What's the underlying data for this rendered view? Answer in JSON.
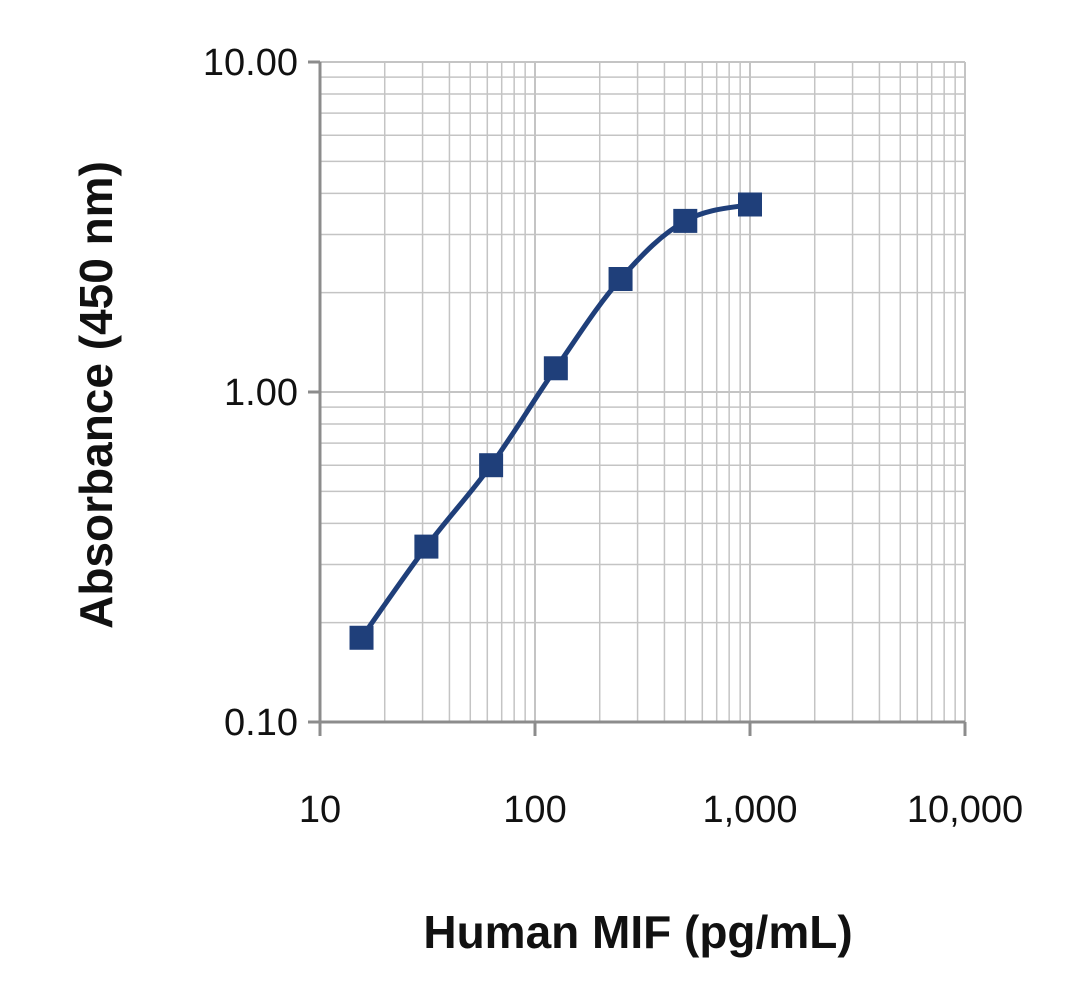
{
  "chart_data": {
    "type": "line",
    "title": "",
    "xlabel": "Human MIF (pg/mL)",
    "ylabel": "Absorbance (450 nm)",
    "x_scale": "log",
    "y_scale": "log",
    "xlim": [
      10,
      10000
    ],
    "ylim": [
      0.1,
      10
    ],
    "x_ticks": [
      10,
      100,
      1000,
      10000
    ],
    "x_tick_labels": [
      "10",
      "100",
      "1,000",
      "10,000"
    ],
    "y_ticks": [
      0.1,
      1,
      10
    ],
    "y_tick_labels": [
      "0.10",
      "1.00",
      "10.00"
    ],
    "grid": true,
    "legend": "none",
    "series": [
      {
        "x": [
          15.6,
          31.25,
          62.5,
          125,
          250,
          500,
          1000
        ],
        "y": [
          0.18,
          0.34,
          0.6,
          1.18,
          2.2,
          3.3,
          3.7
        ],
        "color": "#1f3f7a",
        "marker": "square"
      }
    ],
    "grid_color": "#c4c4c4",
    "axis_color": "#8c8c8c"
  }
}
